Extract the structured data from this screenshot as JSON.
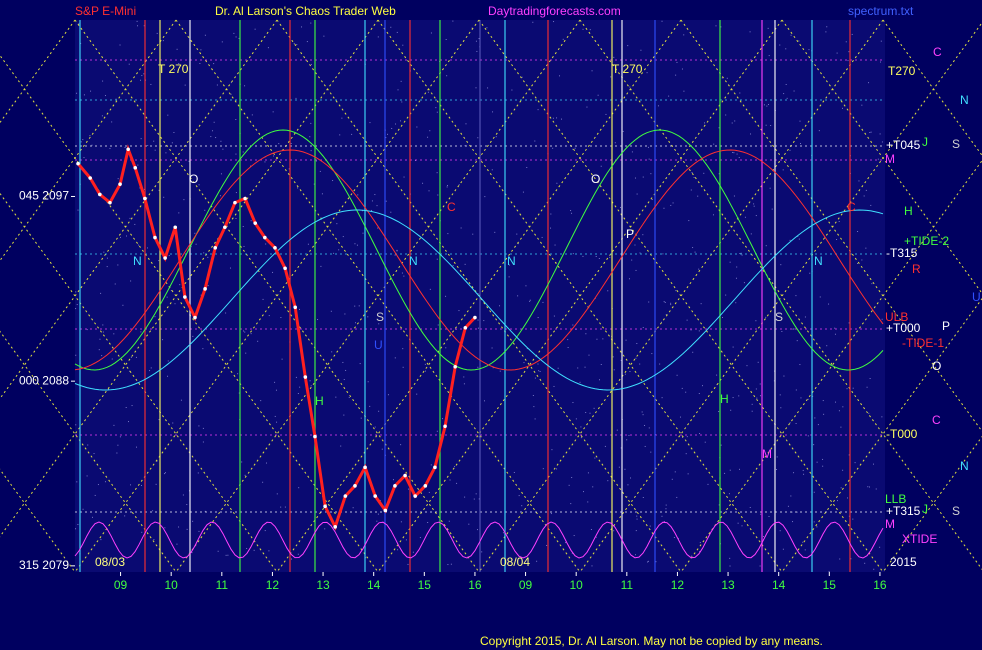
{
  "header": {
    "instrument": "S&P E-Mini",
    "site_title": "Dr. Al Larson's Chaos Trader Web",
    "url": "Daytradingforecasts.com",
    "file": "spectrum.txt"
  },
  "chart_data": {
    "type": "line",
    "color": "#ff2020",
    "x": [
      8.16,
      8.4,
      8.59,
      8.79,
      8.99,
      9.15,
      9.29,
      9.48,
      9.68,
      9.88,
      10.08,
      10.27,
      10.47,
      10.67,
      10.87,
      11.06,
      11.26,
      11.46,
      11.66,
      11.85,
      12.05,
      12.25,
      12.45,
      12.65,
      12.84,
      13.04,
      13.24,
      13.44,
      13.63,
      13.83,
      14.03,
      14.23,
      14.42,
      14.62,
      14.82,
      15.02,
      15.21,
      15.41,
      15.61,
      15.81,
      16.0
    ],
    "values": [
      2098.6,
      2097.9,
      2097.1,
      2096.7,
      2097.6,
      2099.3,
      2098.4,
      2096.9,
      2095.0,
      2094.0,
      2095.5,
      2092.1,
      2091.1,
      2092.5,
      2094.5,
      2095.5,
      2096.7,
      2096.9,
      2095.7,
      2095.0,
      2094.5,
      2093.5,
      2091.6,
      2088.2,
      2085.3,
      2081.9,
      2080.9,
      2082.4,
      2082.9,
      2083.8,
      2082.4,
      2081.7,
      2082.9,
      2083.4,
      2082.4,
      2082.9,
      2083.8,
      2085.8,
      2088.7,
      2090.6,
      2091.1
    ],
    "xlim": [
      8.1,
      24.1
    ],
    "ylim": [
      2078.7,
      2105.6
    ],
    "yticks": [
      {
        "value": 2097,
        "label": "045  2097"
      },
      {
        "value": 2088,
        "label": "000  2088"
      },
      {
        "value": 2079,
        "label": "315  2079"
      }
    ],
    "xticks": [
      {
        "value": 9,
        "label": "09"
      },
      {
        "value": 10,
        "label": "10"
      },
      11,
      12,
      13,
      14,
      15,
      16,
      {
        "value": 17,
        "label": "09"
      },
      {
        "value": 18,
        "label": "10"
      },
      {
        "value": 19,
        "label": "11"
      },
      {
        "value": 20,
        "label": "12"
      },
      {
        "value": 21,
        "label": "13"
      },
      {
        "value": 22,
        "label": "14"
      },
      {
        "value": 23,
        "label": "15"
      },
      {
        "value": 24,
        "label": "16"
      }
    ],
    "dates": [
      "08/03",
      "08/04"
    ],
    "year": "2015"
  },
  "markers": [
    "T270",
    "C",
    "N",
    "+T045",
    "J",
    "S",
    "M",
    "H",
    "+TIDE-2",
    "-T315",
    "R",
    "U",
    "ULB",
    "+T000",
    "P",
    "-TIDE-1",
    "O",
    "-T000",
    "C",
    "N",
    "LLB",
    "+T315",
    "J",
    "S",
    "M",
    "XTIDE"
  ],
  "plot_labels": [
    "T  270",
    "T  270",
    "O",
    "O",
    "P",
    "N",
    "N",
    "N",
    "N",
    "S",
    "S",
    "H",
    "H",
    "M",
    "U",
    "C",
    "C"
  ],
  "footer": "Copyright 2015, Dr. Al Larson. May not be copied by any means."
}
